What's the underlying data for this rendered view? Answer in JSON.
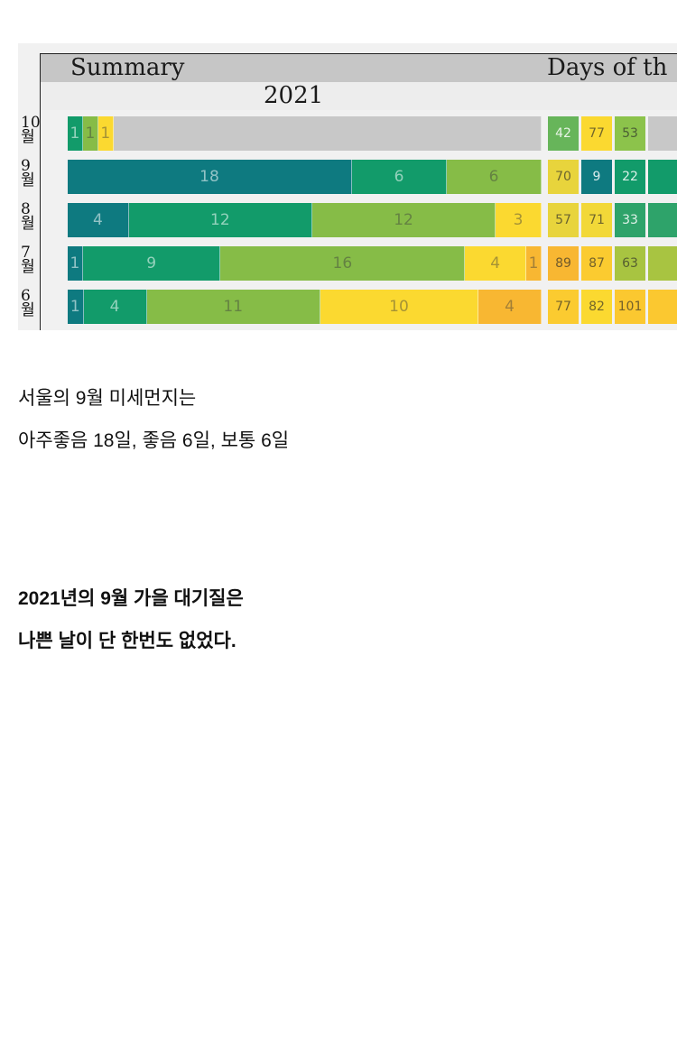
{
  "caption1": {
    "line1": "서울의 9월 미세먼지는",
    "line2": "아주좋음 18일, 좋음 6일, 보통 6일"
  },
  "caption2": {
    "line1": "2021년의 9월 가을 대기질은",
    "line2": "나쁜 날이 단 한번도 없었다."
  },
  "chart_data": {
    "type": "bar",
    "stacked": true,
    "orientation": "horizontal",
    "title": "Summary",
    "subtitle": "2021",
    "secondary_title": "Days of th",
    "categories": [
      "10월",
      "9월",
      "8월",
      "7월",
      "6월"
    ],
    "level_colors": [
      "#0e7a80",
      "#129b6a",
      "#86bc47",
      "#fbd930",
      "#f8b732"
    ],
    "empty_color": "#c8c8c8",
    "total_days": [
      31,
      30,
      31,
      31,
      30
    ],
    "rows": [
      {
        "month": "10월",
        "counts": [
          0,
          1,
          1,
          1,
          0
        ]
      },
      {
        "month": "9월",
        "counts": [
          18,
          6,
          6,
          0,
          0
        ]
      },
      {
        "month": "8월",
        "counts": [
          4,
          12,
          12,
          3,
          0
        ]
      },
      {
        "month": "7월",
        "counts": [
          1,
          9,
          16,
          4,
          1
        ]
      },
      {
        "month": "6월",
        "counts": [
          1,
          4,
          11,
          10,
          4
        ]
      }
    ],
    "daily_values": [
      [
        42,
        77,
        53
      ],
      [
        70,
        9,
        22
      ],
      [
        57,
        71,
        33
      ],
      [
        89,
        87,
        63
      ],
      [
        77,
        82,
        101
      ]
    ],
    "daily_colors": [
      [
        "#67b55a",
        "#fbd930",
        "#8cc34b"
      ],
      [
        "#e8d43c",
        "#0e7a80",
        "#129b6a"
      ],
      [
        "#e8d43c",
        "#f2d838",
        "#2ea36a"
      ],
      [
        "#f8b732",
        "#fbcb30",
        "#a8c441"
      ],
      [
        "#fbcb30",
        "#fbd930",
        "#fbc830"
      ]
    ]
  }
}
